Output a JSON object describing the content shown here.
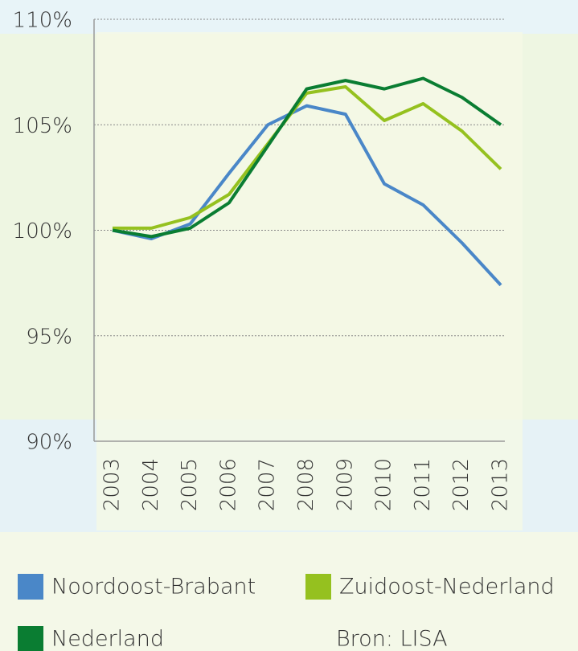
{
  "chart_data": {
    "type": "line",
    "categories": [
      "2003",
      "2004",
      "2005",
      "2006",
      "2007",
      "2008",
      "2009",
      "2010",
      "2011",
      "2012",
      "2013"
    ],
    "series": [
      {
        "name": "Noordoost-Brabant",
        "color": "#4a87c8",
        "values": [
          100.0,
          99.6,
          100.3,
          102.7,
          105.0,
          105.9,
          105.5,
          102.2,
          101.2,
          99.4,
          97.4
        ]
      },
      {
        "name": "Zuidoost-Nederland",
        "color": "#95c11f",
        "values": [
          100.1,
          100.1,
          100.6,
          101.7,
          104.1,
          106.5,
          106.8,
          105.2,
          106.0,
          104.7,
          102.9
        ]
      },
      {
        "name": "Nederland",
        "color": "#0a7d32",
        "values": [
          100.0,
          99.7,
          100.1,
          101.3,
          104.0,
          106.7,
          107.1,
          106.7,
          107.2,
          106.3,
          105.0
        ]
      }
    ],
    "ylim": [
      90,
      110
    ],
    "yticks": [
      {
        "value": 90,
        "label": "90%"
      },
      {
        "value": 95,
        "label": "95%"
      },
      {
        "value": 100,
        "label": "100%"
      },
      {
        "value": 105,
        "label": "105%"
      },
      {
        "value": 110,
        "label": "110%"
      }
    ],
    "grid": true,
    "source": "Bron: LISA"
  }
}
